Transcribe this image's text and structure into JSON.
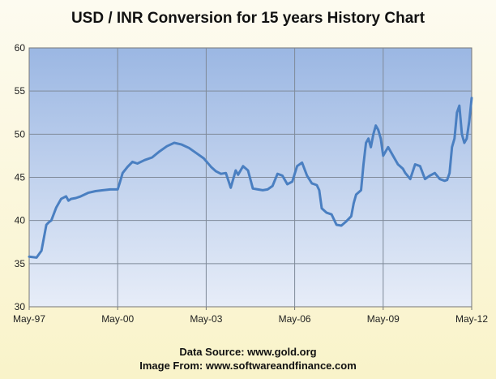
{
  "chart_data": {
    "type": "line",
    "title": "USD / INR Conversion  for 15 years History  Chart",
    "xlabel": "",
    "ylabel": "",
    "x_tick_labels": [
      "May-97",
      "May-00",
      "May-03",
      "May-06",
      "May-09",
      "May-12"
    ],
    "xlim": [
      "1997-05",
      "2012-05"
    ],
    "ylim": [
      30,
      60
    ],
    "y_ticks": [
      30,
      35,
      40,
      45,
      50,
      55,
      60
    ],
    "grid": true,
    "legend": "none",
    "line_color": "#4a7fc1",
    "series": [
      {
        "x": [
          "1997-05",
          "1997-08",
          "1997-10",
          "1997-11",
          "1997-12",
          "1998-01",
          "1998-02",
          "1998-04",
          "1998-06",
          "1998-08",
          "1998-09",
          "1998-10",
          "1998-12",
          "1999-02",
          "1999-05",
          "1999-08",
          "1999-11",
          "2000-02",
          "2000-05",
          "2000-06",
          "2000-07",
          "2000-09",
          "2000-11",
          "2001-01",
          "2001-04",
          "2001-07",
          "2001-10",
          "2002-01",
          "2002-04",
          "2002-07",
          "2002-10",
          "2003-01",
          "2003-04",
          "2003-07",
          "2003-09",
          "2003-11",
          "2004-01",
          "2004-03",
          "2004-04",
          "2004-05",
          "2004-06",
          "2004-08",
          "2004-10",
          "2004-12",
          "2005-02",
          "2005-04",
          "2005-06",
          "2005-08",
          "2005-10",
          "2005-12",
          "2006-02",
          "2006-04",
          "2006-06",
          "2006-08",
          "2006-10",
          "2006-12",
          "2007-01",
          "2007-02",
          "2007-03",
          "2007-04",
          "2007-06",
          "2007-08",
          "2007-10",
          "2007-12",
          "2008-02",
          "2008-04",
          "2008-05",
          "2008-06",
          "2008-08",
          "2008-09",
          "2008-10",
          "2008-11",
          "2008-12",
          "2009-01",
          "2009-02",
          "2009-03",
          "2009-04",
          "2009-05",
          "2009-06",
          "2009-07",
          "2009-09",
          "2009-11",
          "2010-01",
          "2010-02",
          "2010-04",
          "2010-06",
          "2010-08",
          "2010-10",
          "2010-12",
          "2011-02",
          "2011-04",
          "2011-06",
          "2011-07",
          "2011-08",
          "2011-09",
          "2011-10",
          "2011-11",
          "2011-12",
          "2012-01",
          "2012-02",
          "2012-03",
          "2012-04",
          "2012-05"
        ],
        "y": [
          35.8,
          35.7,
          36.5,
          38.0,
          39.5,
          39.8,
          40.0,
          41.5,
          42.5,
          42.8,
          42.3,
          42.5,
          42.6,
          42.8,
          43.2,
          43.4,
          43.5,
          43.6,
          43.6,
          44.5,
          45.5,
          46.2,
          46.8,
          46.6,
          47.0,
          47.3,
          48.0,
          48.6,
          49.0,
          48.8,
          48.4,
          47.8,
          47.2,
          46.2,
          45.7,
          45.4,
          45.5,
          43.8,
          44.8,
          45.8,
          45.3,
          46.3,
          45.8,
          43.7,
          43.6,
          43.5,
          43.6,
          44.0,
          45.4,
          45.2,
          44.2,
          44.5,
          46.3,
          46.7,
          45.2,
          44.3,
          44.2,
          44.1,
          43.5,
          41.4,
          40.9,
          40.7,
          39.5,
          39.4,
          39.9,
          40.5,
          42.0,
          43.0,
          43.5,
          46.5,
          49.0,
          49.5,
          48.5,
          50.0,
          51.0,
          50.5,
          49.5,
          47.5,
          48.0,
          48.5,
          47.5,
          46.5,
          46.0,
          45.5,
          44.8,
          46.5,
          46.3,
          44.8,
          45.2,
          45.5,
          44.8,
          44.6,
          44.7,
          45.5,
          48.5,
          49.5,
          52.5,
          53.3,
          50.0,
          49.0,
          49.5,
          51.5,
          54.2
        ]
      }
    ]
  },
  "footer": {
    "line1": "Data Source: www.gold.org",
    "line2": "Image From:  www.softwareandfinance.com"
  }
}
